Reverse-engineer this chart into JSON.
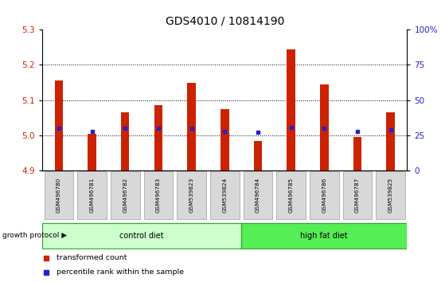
{
  "title": "GDS4010 / 10814190",
  "samples": [
    "GSM496780",
    "GSM496781",
    "GSM496782",
    "GSM496783",
    "GSM539823",
    "GSM539824",
    "GSM496784",
    "GSM496785",
    "GSM496786",
    "GSM496787",
    "GSM539825"
  ],
  "transformed_counts": [
    5.155,
    5.005,
    5.065,
    5.085,
    5.15,
    5.075,
    4.985,
    5.245,
    5.145,
    4.995,
    5.065
  ],
  "percentile_values": [
    0.3,
    0.28,
    0.3,
    0.3,
    0.3,
    0.28,
    0.27,
    0.305,
    0.3,
    0.28,
    0.29
  ],
  "ylim_left": [
    4.9,
    5.3
  ],
  "ylim_right": [
    0,
    100
  ],
  "yticks_left": [
    4.9,
    5.0,
    5.1,
    5.2,
    5.3
  ],
  "yticks_right": [
    0,
    25,
    50,
    75,
    100
  ],
  "ytick_labels_right": [
    "0",
    "25",
    "50",
    "75",
    "100%"
  ],
  "groups": [
    {
      "label": "control diet",
      "start": 0,
      "end": 6,
      "color": "#ccffcc"
    },
    {
      "label": "high fat diet",
      "start": 6,
      "end": 11,
      "color": "#55ee55"
    }
  ],
  "group_label_prefix": "growth protocol",
  "bar_color": "#cc2200",
  "blue_marker_color": "#2222cc",
  "legend_items": [
    {
      "label": "transformed count",
      "color": "#cc2200"
    },
    {
      "label": "percentile rank within the sample",
      "color": "#2222cc"
    }
  ],
  "tick_label_color_left": "#cc2200",
  "tick_label_color_right": "#2222cc",
  "title_fontsize": 10,
  "axis_fontsize": 7.5,
  "label_box_color": "#d8d8d8",
  "label_box_edge_color": "#aaaaaa"
}
